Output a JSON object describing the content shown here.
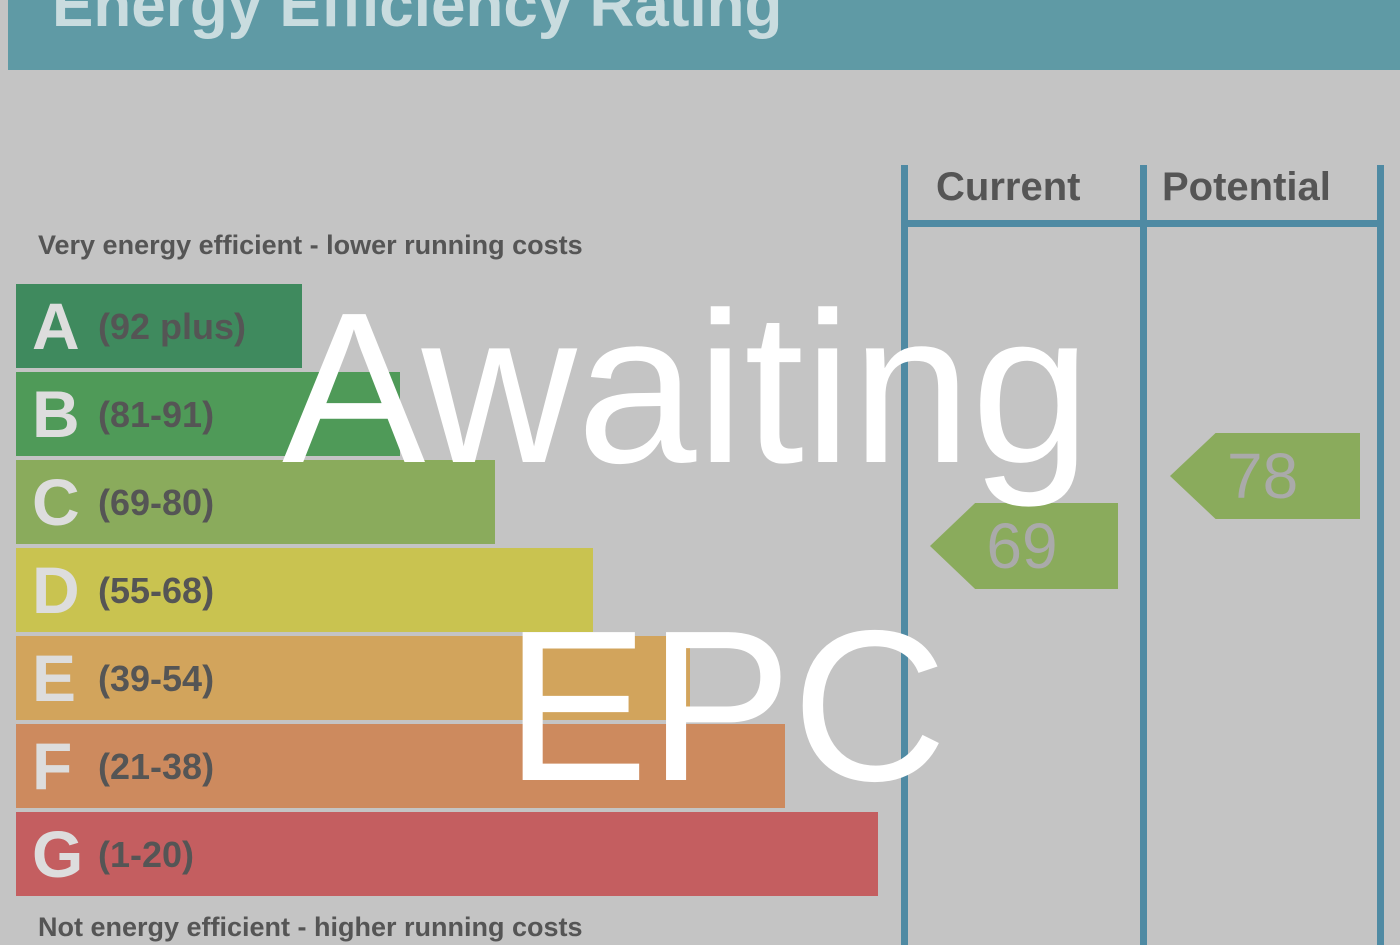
{
  "chart_data": {
    "type": "bar",
    "title": "Energy Efficiency Rating",
    "top_caption": "Very energy efficient - lower running costs",
    "bottom_caption": "Not energy efficient - higher running costs",
    "bands": [
      {
        "range": "(92 plus)",
        "letter": "A",
        "color": "#3f8a5e"
      },
      {
        "range": "(81-91)",
        "letter": "B",
        "color": "#4f9a58"
      },
      {
        "range": "(69-80)",
        "letter": "C",
        "color": "#8aab5c"
      },
      {
        "range": "(55-68)",
        "letter": "D",
        "color": "#c9c350"
      },
      {
        "range": "(39-54)",
        "letter": "E",
        "color": "#d2a45c"
      },
      {
        "range": "(21-38)",
        "letter": "F",
        "color": "#cd8a5e"
      },
      {
        "range": "(1-20)",
        "letter": "G",
        "color": "#c45e60"
      }
    ],
    "columns": [
      "Current",
      "Potential"
    ],
    "current": {
      "value": "69",
      "color": "#8aab5c"
    },
    "potential": {
      "value": "78",
      "color": "#8aab5c"
    }
  },
  "overlay": {
    "line1": "Awaiting",
    "line2": "EPC"
  }
}
